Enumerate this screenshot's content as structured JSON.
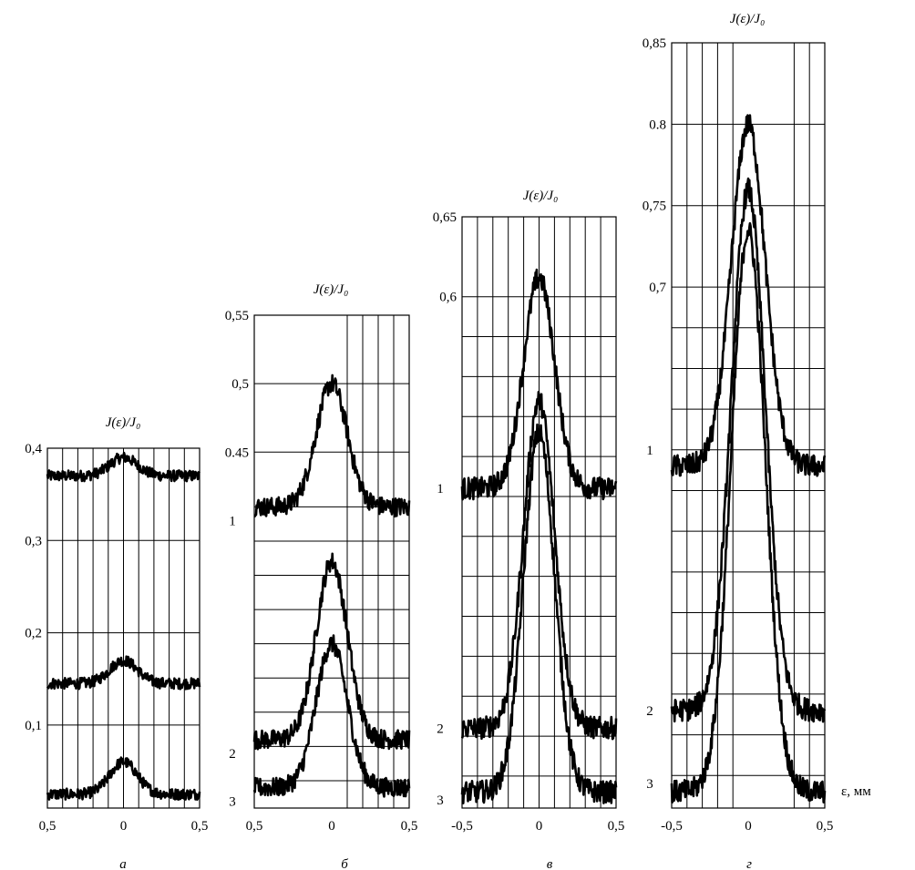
{
  "chart_data": [
    {
      "type": "line",
      "caption": "а",
      "title": "J(ε)/J₀",
      "xlim": [
        -0.5,
        0.5
      ],
      "ylim": [
        0.01,
        0.4
      ],
      "yticks": [
        0.1,
        0.2,
        0.3,
        0.4
      ],
      "ytick_labels": [
        "0,1",
        "0,2",
        "0,3",
        "0,4"
      ],
      "xtick_labels": [
        "0,5",
        "0",
        "0,5"
      ],
      "grid_x": [
        -0.4,
        -0.3,
        -0.2,
        -0.1,
        0,
        0.1,
        0.2,
        0.3,
        0.4
      ],
      "grid_y": [
        0.1,
        0.2,
        0.3,
        0.4
      ],
      "curve_labels": [],
      "series": [
        {
          "baseline": 0.37,
          "peak": 0.39,
          "width": 0.09,
          "noise": 0.006
        },
        {
          "baseline": 0.145,
          "peak": 0.17,
          "width": 0.09,
          "noise": 0.006
        },
        {
          "baseline": 0.025,
          "peak": 0.06,
          "width": 0.09,
          "noise": 0.006
        }
      ]
    },
    {
      "type": "line",
      "caption": "б",
      "title": "J(ε)/J₀",
      "xlim": [
        -0.5,
        0.5
      ],
      "ylim": [
        0.19,
        0.55
      ],
      "yticks": [
        0.45,
        0.5,
        0.55
      ],
      "ytick_labels": [
        "0.45",
        "0,5",
        "0,55"
      ],
      "xtick_labels": [
        "0,5",
        "0",
        "0,5"
      ],
      "grid_x": [
        0.1,
        0.2,
        0.3,
        0.4
      ],
      "grid_y": [
        0.21,
        0.235,
        0.26,
        0.285,
        0.31,
        0.335,
        0.36,
        0.385,
        0.41,
        0.45,
        0.5,
        0.55
      ],
      "curve_labels": [
        {
          "label": "1",
          "y": 0.4
        },
        {
          "label": "2",
          "y": 0.23
        },
        {
          "label": "3",
          "y": 0.195
        }
      ],
      "series": [
        {
          "baseline": 0.41,
          "peak": 0.5,
          "width": 0.1,
          "noise": 0.007
        },
        {
          "baseline": 0.24,
          "peak": 0.37,
          "width": 0.1,
          "noise": 0.007
        },
        {
          "baseline": 0.205,
          "peak": 0.31,
          "width": 0.1,
          "noise": 0.007
        }
      ]
    },
    {
      "type": "line",
      "caption": "в",
      "title": "J(ε)/J₀",
      "xlim": [
        -0.5,
        0.5
      ],
      "ylim": [
        0.28,
        0.65
      ],
      "yticks": [
        0.6,
        0.65
      ],
      "ytick_labels": [
        "0,6",
        "0,65"
      ],
      "xtick_labels": [
        "-0,5",
        "0",
        "0,5"
      ],
      "grid_x": [
        -0.4,
        -0.3,
        -0.2,
        -0.1,
        0,
        0.1,
        0.2,
        0.3,
        0.4
      ],
      "grid_y": [
        0.3,
        0.325,
        0.35,
        0.375,
        0.4,
        0.425,
        0.45,
        0.475,
        0.5,
        0.525,
        0.55,
        0.575,
        0.6,
        0.65
      ],
      "curve_labels": [
        {
          "label": "1",
          "y": 0.48
        },
        {
          "label": "2",
          "y": 0.33
        },
        {
          "label": "3",
          "y": 0.285
        }
      ],
      "series": [
        {
          "baseline": 0.48,
          "peak": 0.612,
          "width": 0.1,
          "noise": 0.007
        },
        {
          "baseline": 0.33,
          "peak": 0.535,
          "width": 0.1,
          "noise": 0.007
        },
        {
          "baseline": 0.29,
          "peak": 0.515,
          "width": 0.1,
          "noise": 0.007
        }
      ]
    },
    {
      "type": "line",
      "caption": "г",
      "title": "J(ε)/J₀",
      "xlim": [
        -0.5,
        0.5
      ],
      "ylim": [
        0.38,
        0.85
      ],
      "yticks": [
        0.7,
        0.75,
        0.8,
        0.85
      ],
      "ytick_labels": [
        "0,7",
        "0,75",
        "0.8",
        "0,85"
      ],
      "xtick_labels": [
        "-0,5",
        "0",
        "0,5"
      ],
      "xlabel": "ε, мм",
      "grid_x": [
        -0.4,
        -0.3,
        -0.2,
        -0.1,
        0.3,
        0.4
      ],
      "grid_y": [
        0.4,
        0.425,
        0.45,
        0.475,
        0.5,
        0.525,
        0.55,
        0.575,
        0.6,
        0.625,
        0.65,
        0.675,
        0.7,
        0.75,
        0.8,
        0.85
      ],
      "curve_labels": [
        {
          "label": "1",
          "y": 0.6
        },
        {
          "label": "2",
          "y": 0.44
        },
        {
          "label": "3",
          "y": 0.395
        }
      ],
      "series": [
        {
          "baseline": 0.59,
          "peak": 0.8,
          "width": 0.11,
          "noise": 0.007
        },
        {
          "baseline": 0.44,
          "peak": 0.76,
          "width": 0.11,
          "noise": 0.007
        },
        {
          "baseline": 0.39,
          "peak": 0.735,
          "width": 0.11,
          "noise": 0.007
        }
      ]
    }
  ]
}
